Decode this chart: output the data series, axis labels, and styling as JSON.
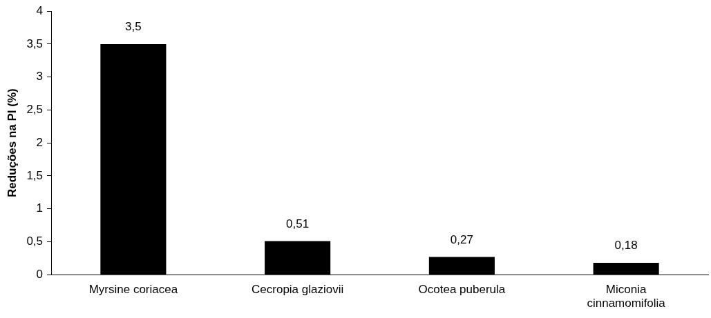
{
  "chart_data": {
    "type": "bar",
    "ylabel": "Reduções na PI (%)",
    "categories": [
      "Myrsine coriacea",
      "Cecropia glaziovii",
      "Ocotea puberula",
      "Miconia cinnamomifolia"
    ],
    "values": [
      3.5,
      0.51,
      0.27,
      0.18
    ],
    "value_labels": [
      "3,5",
      "0,51",
      "0,27",
      "0,18"
    ],
    "color": "#000000",
    "ylim": [
      0,
      4
    ],
    "yticks": [
      0,
      {
        "value": 0.5,
        "label": "0,5"
      },
      1,
      {
        "value": 1.5,
        "label": "1,5"
      },
      2,
      {
        "value": 2.5,
        "label": "2,5"
      },
      3,
      {
        "value": 3.5,
        "label": "3,5"
      },
      4
    ],
    "grid": false,
    "legend": false
  }
}
